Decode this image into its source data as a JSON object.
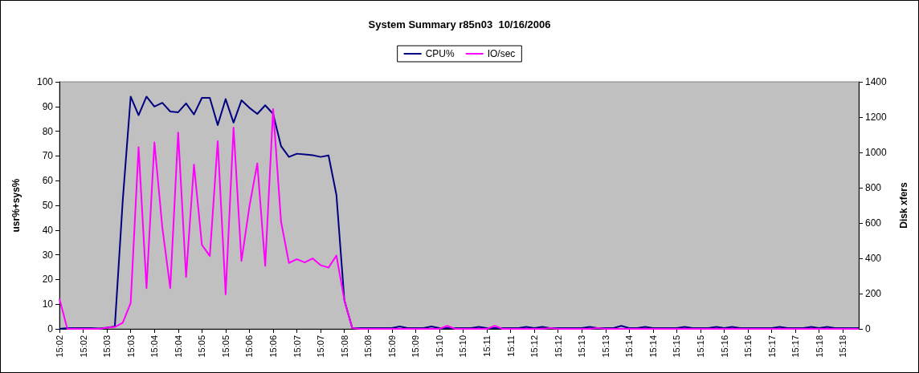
{
  "chart_data": {
    "type": "line",
    "title": "System Summary r85n03  10/16/2006",
    "ylabel": "usr%+sys%",
    "y2label": "Disk xfers",
    "categories": [
      "15:02",
      null,
      null,
      "15:02",
      null,
      null,
      "15:03",
      null,
      null,
      "15:03",
      null,
      null,
      "15:04",
      null,
      null,
      "15:04",
      null,
      null,
      "15:05",
      null,
      null,
      "15:05",
      null,
      null,
      "15:06",
      null,
      null,
      "15:06",
      null,
      null,
      "15:07",
      null,
      null,
      "15:07",
      null,
      null,
      "15:08",
      null,
      null,
      "15:08",
      null,
      null,
      "15:09",
      null,
      null,
      "15:09",
      null,
      null,
      "15:10",
      null,
      null,
      "15:10",
      null,
      null,
      "15:11",
      null,
      null,
      "15:11",
      null,
      null,
      "15:12",
      null,
      null,
      "15:12",
      null,
      null,
      "15:13",
      null,
      null,
      "15:13",
      null,
      null,
      "15:14",
      null,
      null,
      "15:14",
      null,
      null,
      "15:15",
      null,
      null,
      "15:15",
      null,
      null,
      "15:16",
      null,
      null,
      "15:16",
      null,
      null,
      "15:17",
      null,
      null,
      "15:17",
      null,
      null,
      "15:18",
      null,
      null,
      "15:18",
      null,
      null
    ],
    "series": [
      {
        "name": "CPU%",
        "color": "#000080",
        "values": [
          0,
          0.3,
          0.3,
          0.3,
          0.3,
          0.2,
          0.5,
          1,
          52,
          94,
          86.5,
          94,
          90,
          91.5,
          88,
          87.7,
          91.3,
          86.8,
          93.5,
          93.5,
          82.5,
          93,
          83.5,
          92.5,
          89.5,
          87,
          90.5,
          87,
          74,
          69.6,
          70.9,
          70.6,
          70.3,
          69.6,
          70.2,
          54.2,
          11.6,
          0.3,
          0.3,
          0.3,
          0.3,
          0.3,
          0.3,
          1,
          0.3,
          0.3,
          0.3,
          1,
          0.3,
          0.3,
          0.3,
          0.3,
          0.3,
          0.8,
          0.3,
          0.3,
          0.3,
          0.3,
          0.3,
          0.8,
          0.3,
          0.8,
          0.3,
          0.3,
          0.3,
          0.3,
          0.3,
          0.8,
          0.3,
          0.3,
          0.3,
          1.2,
          0.3,
          0.3,
          0.8,
          0.3,
          0.3,
          0.3,
          0.3,
          0.8,
          0.3,
          0.3,
          0.3,
          0.8,
          0.3,
          0.8,
          0.3,
          0.3,
          0.3,
          0.3,
          0.3,
          0.8,
          0.3,
          0.3,
          0.3,
          0.8,
          0.3,
          0.8,
          0.3,
          0.3,
          0.3,
          0.3
        ]
      },
      {
        "name": "IO/sec",
        "color": "#ff00ff",
        "axis": "y2",
        "values": [
          170,
          0,
          0,
          0,
          0,
          0,
          7,
          11,
          35,
          147,
          1029,
          231,
          1057,
          574,
          231,
          1113,
          294,
          931,
          476,
          413,
          1064,
          196,
          1141,
          385,
          693,
          938,
          357,
          1246,
          608,
          374,
          395,
          377,
          399,
          361,
          347,
          416,
          163,
          4,
          0,
          0,
          0,
          0,
          0,
          0,
          0,
          0,
          0,
          0,
          0,
          17,
          0,
          0,
          0,
          0,
          0,
          17,
          0,
          0,
          0,
          0,
          0,
          0,
          5,
          0,
          0,
          0,
          0,
          0,
          5,
          0,
          0,
          0,
          0,
          0,
          0,
          0,
          0,
          0,
          0,
          0,
          0,
          0,
          0,
          0,
          0,
          0,
          0,
          0,
          0,
          0,
          0,
          0,
          0,
          0,
          0,
          0,
          0,
          0,
          0,
          0,
          0,
          0
        ]
      }
    ],
    "ylim": [
      0,
      100
    ],
    "yticks": [
      0,
      10,
      20,
      30,
      40,
      50,
      60,
      70,
      80,
      90,
      100
    ],
    "y2lim": [
      0,
      1400
    ],
    "y2ticks": [
      0,
      200,
      400,
      600,
      800,
      1000,
      1200,
      1400
    ],
    "grid": false,
    "legend": "top",
    "marker": "none",
    "line_style": "solid"
  }
}
